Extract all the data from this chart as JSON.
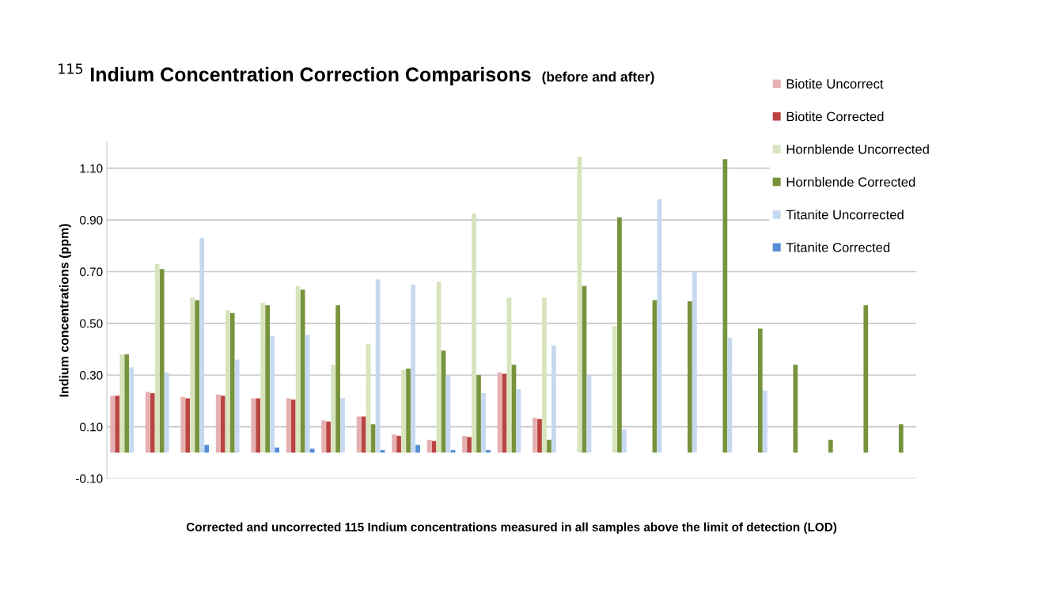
{
  "chart_data": {
    "type": "bar",
    "title": "$^{115}$ Indium Concentration Correction Comparisons",
    "subtitle": "(before and after)",
    "xlabel": "Corrected and uncorrected 115 Indium concentrations measured in all samples above the limit of detection (LOD)",
    "ylabel": "Indium concentrations (ppm)",
    "categories": [
      null,
      null,
      null,
      null,
      null,
      null,
      null,
      null,
      null,
      null,
      null,
      null,
      null,
      null,
      null,
      null,
      null,
      null,
      null,
      null,
      null,
      null,
      null
    ],
    "series": [
      {
        "name": "Biotite Uncorrect",
        "color": "#e6b0b0",
        "values": [
          0.22,
          0.235,
          0.215,
          0.225,
          0.21,
          0.21,
          0.125,
          0.14,
          0.07,
          0.05,
          0.065,
          0.31,
          0.135,
          null,
          null,
          null,
          null,
          null,
          null,
          null,
          null,
          null,
          null
        ]
      },
      {
        "name": "Biotite Corrected",
        "color": "#b94441",
        "values": [
          0.22,
          0.23,
          0.21,
          0.22,
          0.21,
          0.205,
          0.12,
          0.14,
          0.065,
          0.045,
          0.06,
          0.305,
          0.13,
          null,
          null,
          null,
          null,
          null,
          null,
          null,
          null,
          null,
          null
        ]
      },
      {
        "name": "Hornblende Uncorrected",
        "color": "#d7e4bd",
        "values": [
          0.38,
          0.73,
          0.6,
          0.55,
          0.58,
          0.645,
          0.34,
          0.42,
          0.32,
          0.66,
          0.925,
          0.6,
          0.6,
          1.145,
          0.49,
          null,
          null,
          null,
          null,
          null,
          null,
          null,
          null
        ]
      },
      {
        "name": "Hornblende Corrected",
        "color": "#77933c",
        "values": [
          0.38,
          0.71,
          0.59,
          0.54,
          0.57,
          0.63,
          0.57,
          0.11,
          0.325,
          0.395,
          0.3,
          0.34,
          0.05,
          0.645,
          0.91,
          0.59,
          0.585,
          1.135,
          0.48,
          0.34,
          0.05,
          0.57,
          0.11
        ]
      },
      {
        "name": "Titanite Uncorrected",
        "color": "#c6d9f1",
        "values": [
          0.33,
          0.31,
          0.83,
          0.36,
          0.45,
          0.455,
          0.21,
          0.67,
          0.65,
          0.3,
          0.23,
          0.245,
          0.415,
          0.3,
          0.09,
          0.98,
          0.7,
          0.445,
          0.24,
          null,
          null,
          null,
          null
        ]
      },
      {
        "name": "Titanite Corrected",
        "color": "#558ed5",
        "values": [
          0.0,
          0.0,
          0.03,
          0.0,
          0.02,
          0.015,
          0.0,
          0.01,
          0.03,
          0.01,
          0.01,
          null,
          null,
          null,
          null,
          null,
          null,
          null,
          null,
          null,
          null,
          null,
          null
        ]
      }
    ],
    "ylim": [
      -0.1,
      1.2
    ],
    "yticks": [
      {
        "value": -0.1,
        "label": "-0.10"
      },
      {
        "value": 0.1,
        "label": "0.10"
      },
      {
        "value": 0.3,
        "label": "0.30"
      },
      {
        "value": 0.5,
        "label": "0.50"
      },
      {
        "value": 0.7,
        "label": "0.70"
      },
      {
        "value": 0.9,
        "label": "0.90"
      },
      {
        "value": 1.1,
        "label": "1.10"
      }
    ],
    "grid": "y",
    "legend": "right",
    "tick_labels": "y"
  }
}
